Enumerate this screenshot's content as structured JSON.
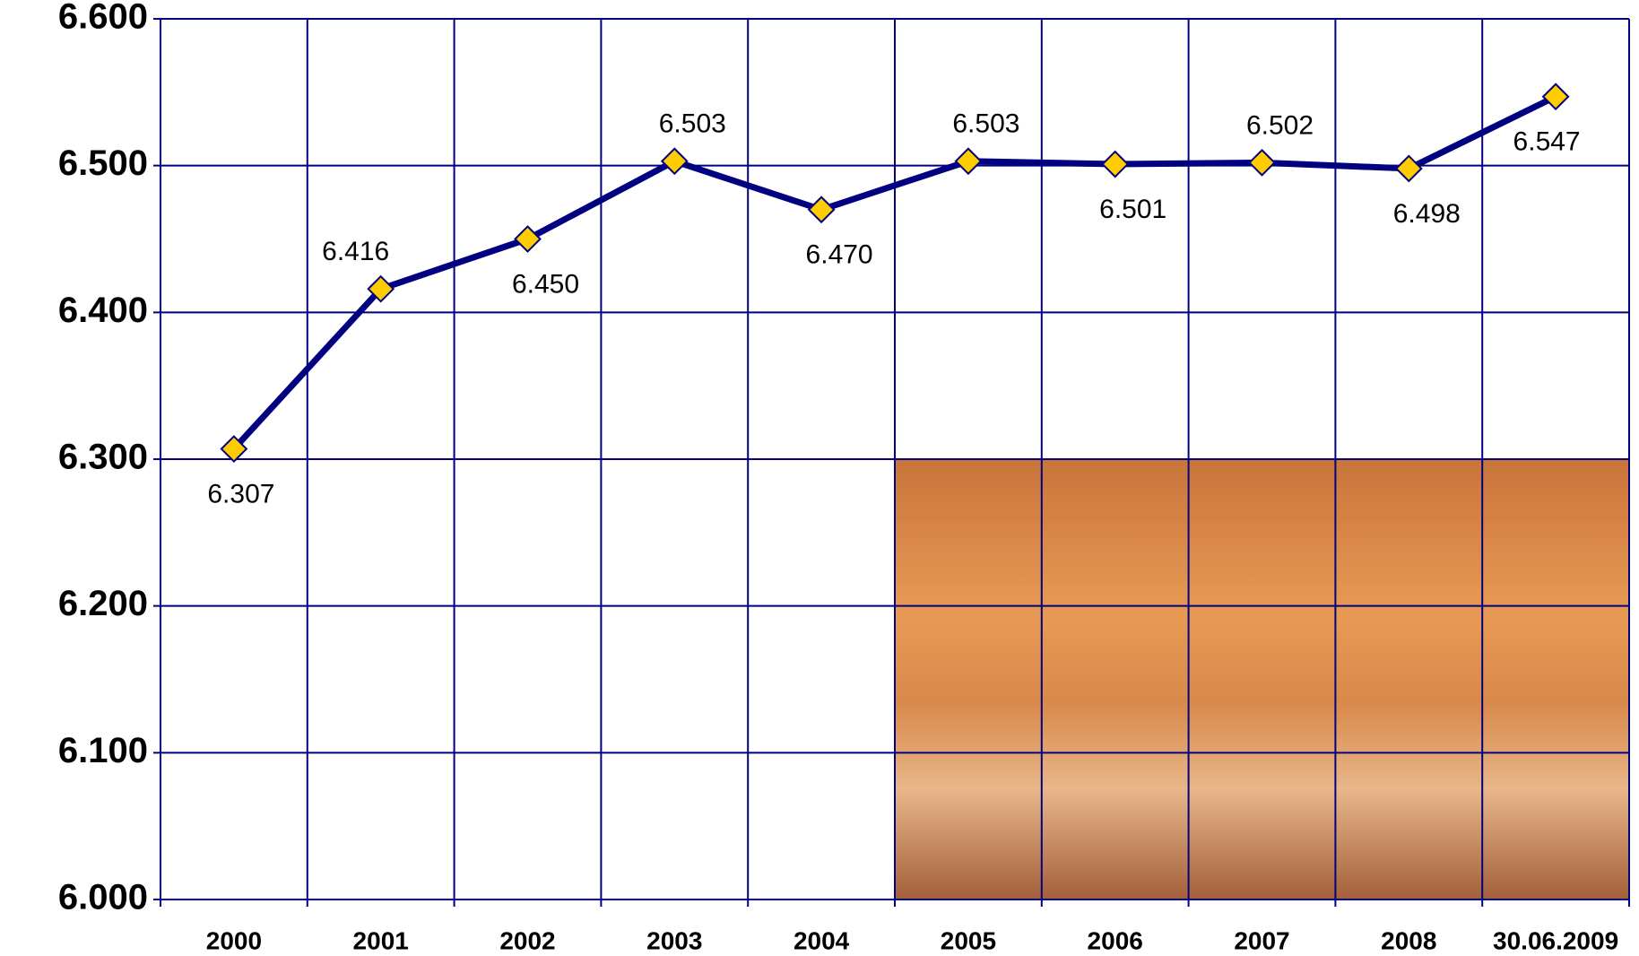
{
  "chart_data": {
    "type": "line",
    "categories": [
      "2000",
      "2001",
      "2002",
      "2003",
      "2004",
      "2005",
      "2006",
      "2007",
      "2008",
      "30.06.2009"
    ],
    "values": [
      6.307,
      6.416,
      6.45,
      6.503,
      6.47,
      6.503,
      6.501,
      6.502,
      6.498,
      6.547
    ],
    "value_labels": [
      "6.307",
      "6.416",
      "6.450",
      "6.503",
      "6.470",
      "6.503",
      "6.501",
      "6.502",
      "6.498",
      "6.547"
    ],
    "color": "#000080",
    "marker_color": "#ffcc00",
    "ylim": [
      6.0,
      6.6
    ],
    "yticks": [
      {
        "value": 6.0,
        "label": "6.000"
      },
      {
        "value": 6.1,
        "label": "6.100"
      },
      {
        "value": 6.2,
        "label": "6.200"
      },
      {
        "value": 6.3,
        "label": "6.300"
      },
      {
        "value": 6.4,
        "label": "6.400"
      },
      {
        "value": 6.5,
        "label": "6.500"
      },
      {
        "value": 6.6,
        "label": "6.600"
      }
    ],
    "grid": true
  }
}
